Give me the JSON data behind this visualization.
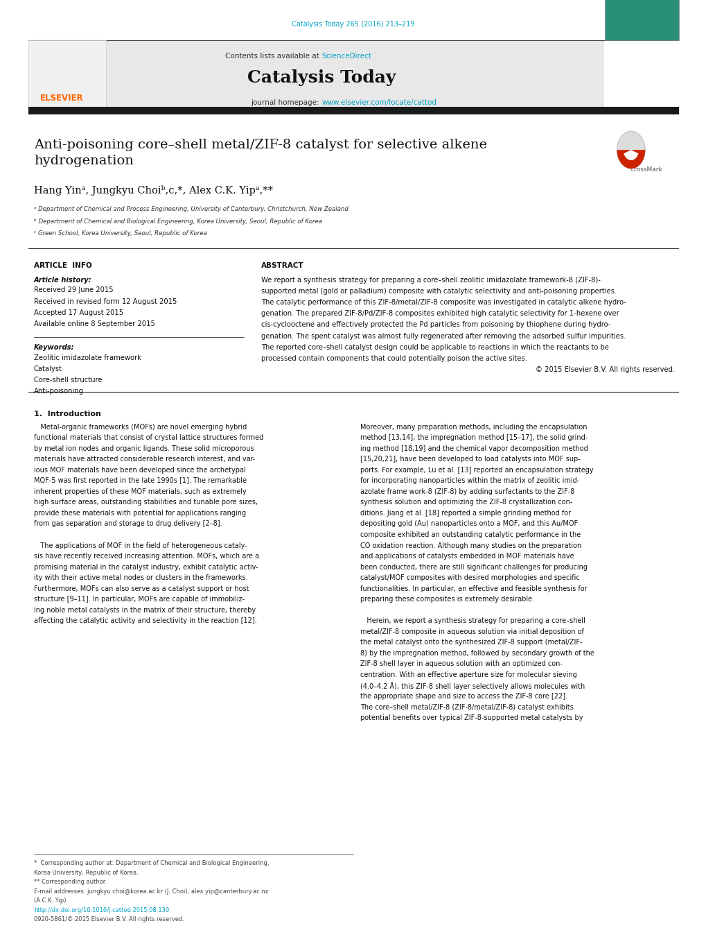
{
  "page_width": 10.2,
  "page_height": 13.51,
  "bg_color": "#ffffff",
  "top_citation": "Catalysis Today 265 (2016) 213–219",
  "top_citation_color": "#00a0c6",
  "header_bg": "#e8e8e8",
  "header_text": "Contents lists available at ",
  "sciencedirect_text": "ScienceDirect",
  "sciencedirect_color": "#00a0c6",
  "journal_title": "Catalysis Today",
  "journal_homepage_prefix": "journal homepage: ",
  "journal_url": "www.elsevier.com/locate/cattod",
  "journal_url_color": "#00a0c6",
  "dark_bar_color": "#1a1a1a",
  "article_title_line1": "Anti-poisoning core–shell metal/ZIF-8 catalyst for selective alkene",
  "article_title_line2": "hydrogenation",
  "authors": "Hang Yinᵃ, Jungkyu Choiᵇ,c,*, Alex C.K. Yipᵃ,**",
  "affil_a": "ᵃ Department of Chemical and Process Engineering, University of Canterbury, Christchurch, New Zealand",
  "affil_b": "ᵇ Department of Chemical and Biological Engineering, Korea University, Seoul, Republic of Korea",
  "affil_c": "ᶜ Green School, Korea University, Seoul, Republic of Korea",
  "section_article_info": "ARTICLE  INFO",
  "section_abstract": "ABSTRACT",
  "article_history_title": "Article history:",
  "received": "Received 29 June 2015",
  "received_revised": "Received in revised form 12 August 2015",
  "accepted": "Accepted 17 August 2015",
  "available": "Available online 8 September 2015",
  "keywords_title": "Keywords:",
  "keywords": [
    "Zeolitic imidazolate framework",
    "Catalyst",
    "Core-shell structure",
    "Anti-poisoning"
  ],
  "copyright": "© 2015 Elsevier B.V. All rights reserved.",
  "intro_title": "1.  Introduction",
  "link_color": "#00a0c6",
  "elsevier_orange": "#ff6600",
  "text_color": "#000000",
  "gray_text": "#555555",
  "abstract_lines": [
    "We report a synthesis strategy for preparing a core–shell zeolitic imidazolate framework-8 (ZIF-8)-",
    "supported metal (gold or palladium) composite with catalytic selectivity and anti-poisoning properties.",
    "The catalytic performance of this ZIF-8/metal/ZIF-8 composite was investigated in catalytic alkene hydro-",
    "genation. The prepared ZIF-8/Pd/ZIF-8 composites exhibited high catalytic selectivity for 1-hexene over",
    "cis-cyclooctene and effectively protected the Pd particles from poisoning by thiophene during hydro-",
    "genation. The spent catalyst was almost fully regenerated after removing the adsorbed sulfur impurities.",
    "The reported core–shell catalyst design could be applicable to reactions in which the reactants to be",
    "processed contain components that could potentially poison the active sites."
  ],
  "intro_col1_lines": [
    "   Metal-organic frameworks (MOFs) are novel emerging hybrid",
    "functional materials that consist of crystal lattice structures formed",
    "by metal ion nodes and organic ligands. These solid microporous",
    "materials have attracted considerable research interest, and var-",
    "ious MOF materials have been developed since the archetypal",
    "MOF-5 was first reported in the late 1990s [1]. The remarkable",
    "inherent properties of these MOF materials, such as extremely",
    "high surface areas, outstanding stabilities and tunable pore sizes,",
    "provide these materials with potential for applications ranging",
    "from gas separation and storage to drug delivery [2–8].",
    "",
    "   The applications of MOF in the field of heterogeneous cataly-",
    "sis have recently received increasing attention. MOFs, which are a",
    "promising material in the catalyst industry, exhibit catalytic activ-",
    "ity with their active metal nodes or clusters in the frameworks.",
    "Furthermore, MOFs can also serve as a catalyst support or host",
    "structure [9–11]. In particular, MOFs are capable of immobiliz-",
    "ing noble metal catalysts in the matrix of their structure, thereby",
    "affecting the catalytic activity and selectivity in the reaction [12]."
  ],
  "intro_col2_lines": [
    "Moreover, many preparation methods, including the encapsulation",
    "method [13,14], the impregnation method [15–17], the solid grind-",
    "ing method [18,19] and the chemical vapor decomposition method",
    "[15,20,21], have been developed to load catalysts into MOF sup-",
    "ports. For example, Lu et al. [13] reported an encapsulation strategy",
    "for incorporating nanoparticles within the matrix of zeolitic imid-",
    "azolate frame work-8 (ZIF-8) by adding surfactants to the ZIF-8",
    "synthesis solution and optimizing the ZIF-8 crystallization con-",
    "ditions. Jiang et al. [18] reported a simple grinding method for",
    "depositing gold (Au) nanoparticles onto a MOF, and this Au/MOF",
    "composite exhibited an outstanding catalytic performance in the",
    "CO oxidation reaction. Although many studies on the preparation",
    "and applications of catalysts embedded in MOF materials have",
    "been conducted, there are still significant challenges for producing",
    "catalyst/MOF composites with desired morphologies and specific",
    "functionalities. In particular, an effective and feasible synthesis for",
    "preparing these composites is extremely desirable.",
    "",
    "   Herein, we report a synthesis strategy for preparing a core–shell",
    "metal/ZIF-8 composite in aqueous solution via initial deposition of",
    "the metal catalyst onto the synthesized ZIF-8 support (metal/ZIF-",
    "8) by the impregnation method, followed by secondary growth of the",
    "ZIF-8 shell layer in aqueous solution with an optimized con-",
    "centration. With an effective aperture size for molecular sieving",
    "(4.0–4.2 Å), this ZIF-8 shell layer selectively allows molecules with",
    "the appropriate shape and size to access the ZIF-8 core [22].",
    "The core–shell metal/ZIF-8 (ZIF-8/metal/ZIF-8) catalyst exhibits",
    "potential benefits over typical ZIF-8-supported metal catalysts by"
  ],
  "footer_lines": [
    [
      "*  Corresponding author at: Department of Chemical and Biological Engineering,",
      false
    ],
    [
      "Korea University, Republic of Korea.",
      false
    ],
    [
      "** Corresponding author.",
      false
    ],
    [
      "E-mail addresses: jungkyu.choi@korea.ac.kr (J. Choi), alex.yip@canterbury.ac.nz",
      false
    ],
    [
      "(A.C.K. Yip).",
      false
    ],
    [
      "http://dx.doi.org/10.1016/j.cattod.2015.08.130",
      true
    ],
    [
      "0920-5861/© 2015 Elsevier B.V. All rights reserved.",
      false
    ]
  ]
}
